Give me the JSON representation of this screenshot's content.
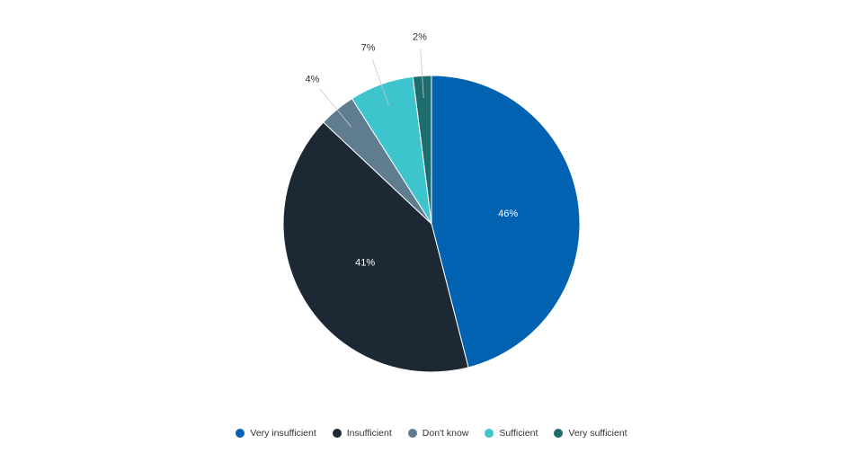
{
  "chart_data": {
    "type": "pie",
    "title": "",
    "legend_position": "bottom",
    "slices": [
      {
        "name": "Very insufficient",
        "value": 46,
        "label": "46%",
        "color": "#0062b1"
      },
      {
        "name": "Insufficient",
        "value": 41,
        "label": "41%",
        "color": "#1c2833"
      },
      {
        "name": "Don't know",
        "value": 4,
        "label": "4%",
        "color": "#5f7d8e"
      },
      {
        "name": "Sufficient",
        "value": 7,
        "label": "7%",
        "color": "#3ec4cc"
      },
      {
        "name": "Very sufficient",
        "value": 2,
        "label": "2%",
        "color": "#1d6c6e"
      }
    ]
  }
}
